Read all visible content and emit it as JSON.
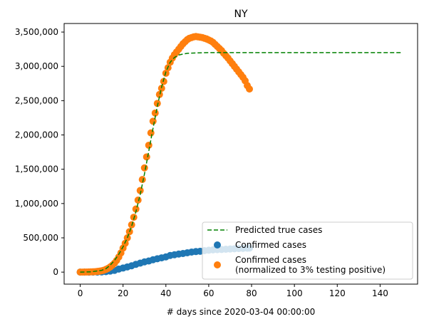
{
  "chart_data": {
    "type": "scatter",
    "title": "NY",
    "xlabel": "# days since 2020-03-04 00:00:00",
    "ylabel": "",
    "xlim": [
      -7.5,
      157.5
    ],
    "ylim": [
      -175000,
      3625000
    ],
    "xticks": [
      0,
      20,
      40,
      60,
      80,
      100,
      120,
      140
    ],
    "xtick_labels": [
      "0",
      "20",
      "40",
      "60",
      "80",
      "100",
      "120",
      "140"
    ],
    "yticks": [
      0,
      500000,
      1000000,
      1500000,
      2000000,
      2500000,
      3000000,
      3500000
    ],
    "ytick_labels": [
      "0",
      "500,000",
      "1,000,000",
      "1,500,000",
      "2,000,000",
      "2,500,000",
      "3,000,000",
      "3,500,000"
    ],
    "grid": false,
    "legend_position": "lower right",
    "series": [
      {
        "name": "Predicted true cases",
        "kind": "line",
        "style": "dashed",
        "color": "#008000",
        "x": [
          0,
          5,
          10,
          12,
          14,
          16,
          18,
          20,
          22,
          24,
          26,
          28,
          30,
          32,
          34,
          36,
          38,
          40,
          42,
          44,
          46,
          48,
          50,
          55,
          60,
          70,
          80,
          100,
          120,
          150
        ],
        "y": [
          0,
          5000,
          25000,
          50000,
          100000,
          170000,
          260000,
          370000,
          500000,
          670000,
          880000,
          1130000,
          1430000,
          1760000,
          2100000,
          2420000,
          2700000,
          2920000,
          3060000,
          3130000,
          3165000,
          3180000,
          3190000,
          3197000,
          3200000,
          3200000,
          3200000,
          3200000,
          3200000,
          3200000
        ]
      },
      {
        "name": "Confirmed cases",
        "kind": "scatter",
        "color": "#1f77b4",
        "x": [
          0,
          2,
          4,
          6,
          8,
          10,
          12,
          14,
          16,
          18,
          20,
          22,
          24,
          26,
          28,
          30,
          32,
          34,
          36,
          38,
          40,
          42,
          44,
          46,
          48,
          50,
          52,
          54,
          56,
          58,
          60,
          62,
          64,
          66,
          68,
          70,
          72,
          74,
          76,
          78,
          79
        ],
        "y": [
          11,
          22,
          95,
          142,
          524,
          2382,
          7102,
          15168,
          25665,
          44635,
          59513,
          75795,
          92381,
          113704,
          130689,
          149316,
          161807,
          180458,
          195031,
          208465,
          222284,
          242786,
          253060,
          263460,
          271590,
          282143,
          291996,
          299691,
          304372,
          312977,
          318953,
          324879,
          327469,
          330407,
          333122,
          337055,
          340661,
          343051,
          345813,
          348232,
          350121
        ]
      },
      {
        "name": "Confirmed cases\n(normalized to 3% testing positive)",
        "kind": "scatter",
        "color": "#ff7f0e",
        "x": [
          0,
          1,
          2,
          3,
          4,
          5,
          6,
          7,
          8,
          9,
          10,
          11,
          12,
          13,
          14,
          15,
          16,
          17,
          18,
          19,
          20,
          21,
          22,
          23,
          24,
          25,
          26,
          27,
          28,
          29,
          30,
          31,
          32,
          33,
          34,
          35,
          36,
          37,
          38,
          39,
          40,
          41,
          42,
          43,
          44,
          45,
          46,
          47,
          48,
          49,
          50,
          51,
          52,
          53,
          54,
          55,
          56,
          57,
          58,
          59,
          60,
          61,
          62,
          63,
          64,
          65,
          66,
          67,
          68,
          69,
          70,
          71,
          72,
          73,
          74,
          75,
          76,
          77,
          78,
          79
        ],
        "y": [
          0,
          500,
          1000,
          1500,
          2500,
          3500,
          5000,
          7000,
          10000,
          14000,
          20000,
          28000,
          40000,
          55000,
          75000,
          100000,
          130000,
          170000,
          220000,
          280000,
          350000,
          420000,
          500000,
          590000,
          690000,
          800000,
          920000,
          1050000,
          1190000,
          1350000,
          1520000,
          1680000,
          1850000,
          2030000,
          2200000,
          2320000,
          2460000,
          2590000,
          2680000,
          2780000,
          2900000,
          2980000,
          3060000,
          3120000,
          3170000,
          3210000,
          3250000,
          3290000,
          3330000,
          3360000,
          3390000,
          3410000,
          3420000,
          3430000,
          3435000,
          3430000,
          3425000,
          3420000,
          3410000,
          3400000,
          3385000,
          3370000,
          3350000,
          3320000,
          3290000,
          3260000,
          3230000,
          3190000,
          3155000,
          3120000,
          3080000,
          3040000,
          3000000,
          2960000,
          2920000,
          2880000,
          2840000,
          2790000,
          2720000,
          2670000
        ]
      }
    ]
  }
}
